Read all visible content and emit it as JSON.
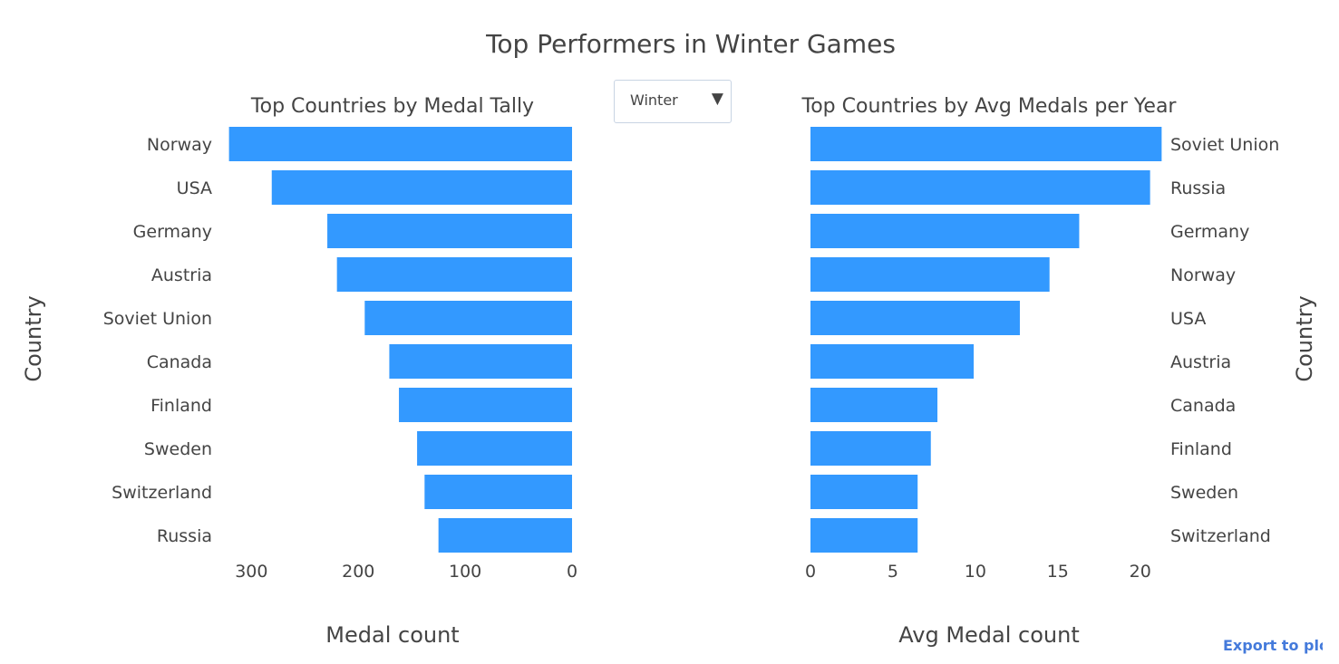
{
  "page_title": "Top Performers in Winter Games",
  "dropdown": {
    "selected": "Winter"
  },
  "export_link": "Export to plo",
  "colors": {
    "bar": "#3399ff",
    "text": "#444444",
    "link": "#447adb"
  },
  "chart_data": [
    {
      "type": "bar",
      "orientation": "horizontal",
      "title": "Top Countries by Medal Tally",
      "xlabel": "Medal count",
      "ylabel": "Country",
      "x_reversed": true,
      "xlim": [
        0,
        330
      ],
      "xticks": [
        0,
        100,
        200,
        300
      ],
      "categories": [
        "Norway",
        "USA",
        "Germany",
        "Austria",
        "Soviet Union",
        "Canada",
        "Finland",
        "Sweden",
        "Switzerland",
        "Russia"
      ],
      "values": [
        321,
        281,
        229,
        220,
        194,
        171,
        162,
        145,
        138,
        125
      ]
    },
    {
      "type": "bar",
      "orientation": "horizontal",
      "title": "Top Countries by Avg Medals per Year",
      "xlabel": "Avg Medal count",
      "ylabel": "Country",
      "x_reversed": false,
      "xlim": [
        0,
        21.5
      ],
      "xticks": [
        0,
        5,
        10,
        15,
        20
      ],
      "categories": [
        "Soviet Union",
        "Russia",
        "Germany",
        "Norway",
        "USA",
        "Austria",
        "Canada",
        "Finland",
        "Sweden",
        "Switzerland"
      ],
      "values": [
        21.3,
        20.6,
        16.3,
        14.5,
        12.7,
        9.9,
        7.7,
        7.3,
        6.5,
        6.5
      ]
    }
  ]
}
